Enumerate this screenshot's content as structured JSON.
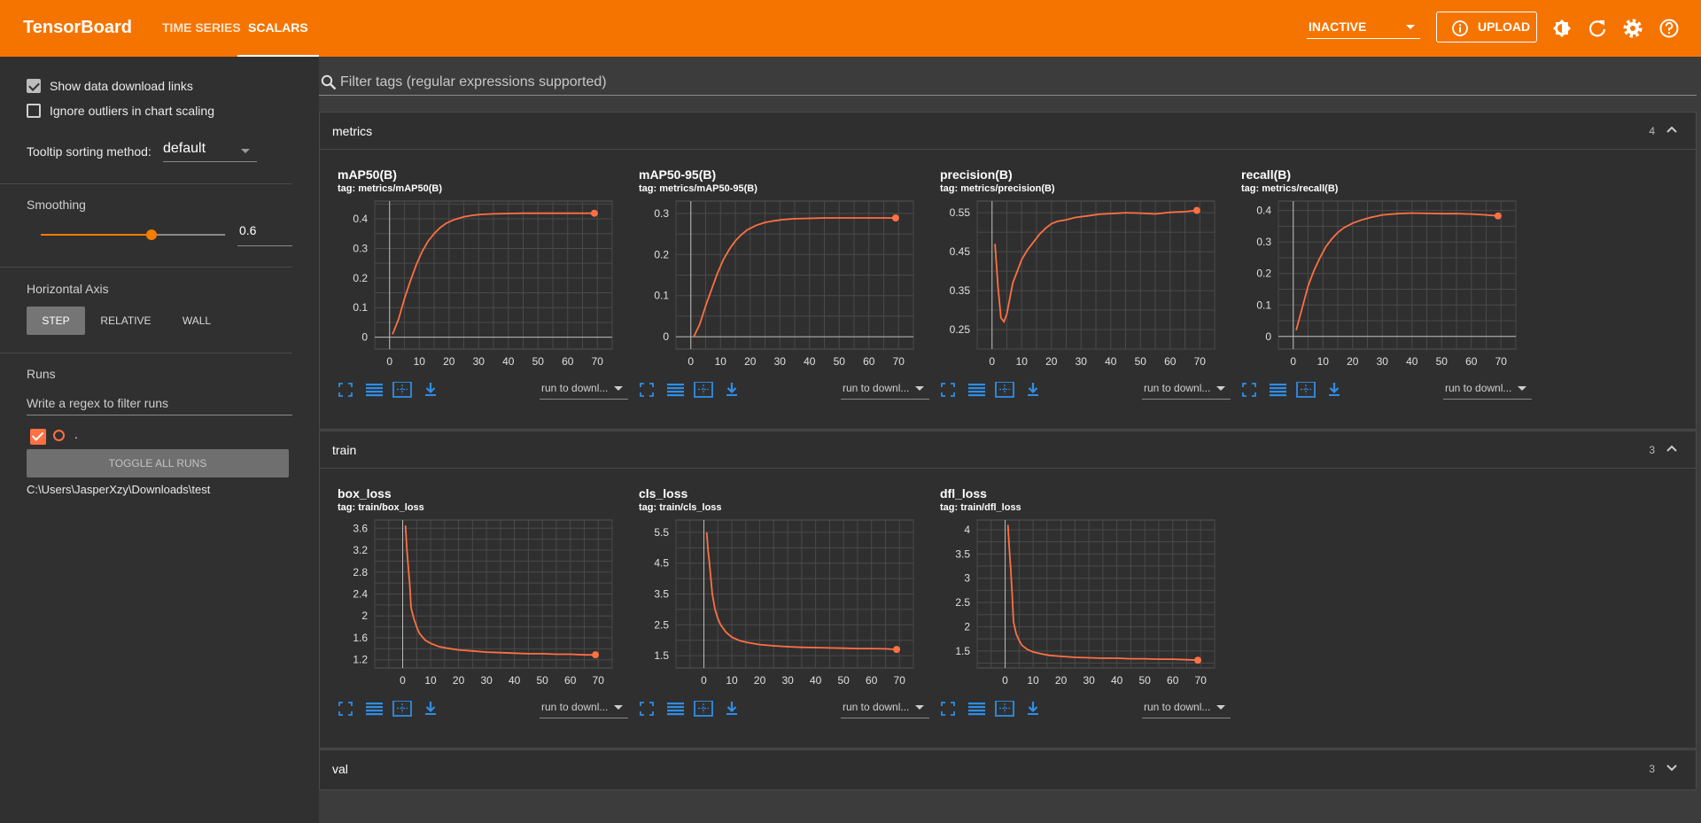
{
  "header": {
    "brand": "TensorBoard",
    "tabs": [
      {
        "label": "TIME SERIES",
        "active": false
      },
      {
        "label": "SCALARS",
        "active": true
      }
    ],
    "run_selector": "INACTIVE",
    "upload_label": "UPLOAD",
    "icons": [
      "theme-icon",
      "refresh-icon",
      "settings-icon",
      "help-icon"
    ],
    "color": "#f57400"
  },
  "sidebar": {
    "show_download_links": {
      "label": "Show data download links",
      "checked": true
    },
    "ignore_outliers": {
      "label": "Ignore outliers in chart scaling",
      "checked": false
    },
    "tooltip_sorting": {
      "label": "Tooltip sorting method:",
      "value": "default"
    },
    "smoothing": {
      "label": "Smoothing",
      "value": "0.6",
      "fraction": 0.6
    },
    "horizontal_axis": {
      "label": "Horizontal Axis",
      "options": [
        "STEP",
        "RELATIVE",
        "WALL"
      ],
      "selected": "STEP"
    },
    "runs": {
      "label": "Runs",
      "filter_placeholder": "Write a regex to filter runs",
      "run_name": ".",
      "toggle_all": "TOGGLE ALL RUNS",
      "path": "C:\\Users\\JasperXzy\\Downloads\\test"
    }
  },
  "main": {
    "filter_placeholder": "Filter tags (regular expressions supported)",
    "download_dropdown": "run to downl...",
    "series_color": "#ff7043",
    "groups": [
      {
        "name": "metrics",
        "count": "4",
        "expanded": true
      },
      {
        "name": "train",
        "count": "3",
        "expanded": true
      },
      {
        "name": "val",
        "count": "3",
        "expanded": false
      }
    ]
  },
  "chart_data": [
    {
      "type": "line",
      "title": "mAP50(B)",
      "tag": "tag: metrics/mAP50(B)",
      "xticks": [
        0,
        10,
        20,
        30,
        40,
        50,
        60,
        70
      ],
      "xlim": [
        -5,
        75
      ],
      "yticks": [
        0,
        0.1,
        0.2,
        0.3,
        0.4
      ],
      "ylim": [
        -0.04,
        0.46
      ],
      "x": [
        1,
        3,
        5,
        7,
        9,
        11,
        13,
        15,
        17,
        19,
        22,
        25,
        28,
        31,
        35,
        40,
        45,
        50,
        55,
        60,
        65,
        69
      ],
      "y": [
        0.01,
        0.06,
        0.13,
        0.19,
        0.245,
        0.29,
        0.325,
        0.35,
        0.37,
        0.385,
        0.398,
        0.407,
        0.412,
        0.415,
        0.417,
        0.418,
        0.419,
        0.419,
        0.419,
        0.419,
        0.419,
        0.419
      ]
    },
    {
      "type": "line",
      "title": "mAP50-95(B)",
      "tag": "tag: metrics/mAP50-95(B)",
      "xticks": [
        0,
        10,
        20,
        30,
        40,
        50,
        60,
        70
      ],
      "xlim": [
        -5,
        75
      ],
      "yticks": [
        0,
        0.1,
        0.2,
        0.3
      ],
      "ylim": [
        -0.03,
        0.33
      ],
      "x": [
        1,
        3,
        5,
        7,
        9,
        11,
        13,
        15,
        17,
        19,
        22,
        25,
        28,
        31,
        35,
        40,
        45,
        50,
        55,
        60,
        65,
        69
      ],
      "y": [
        0.0,
        0.03,
        0.075,
        0.115,
        0.155,
        0.188,
        0.213,
        0.233,
        0.248,
        0.26,
        0.271,
        0.278,
        0.282,
        0.285,
        0.287,
        0.288,
        0.289,
        0.289,
        0.289,
        0.289,
        0.289,
        0.289
      ]
    },
    {
      "type": "line",
      "title": "precision(B)",
      "tag": "tag: metrics/precision(B)",
      "xticks": [
        0,
        10,
        20,
        30,
        40,
        50,
        60,
        70
      ],
      "xlim": [
        -5,
        75
      ],
      "yticks": [
        0.25,
        0.35,
        0.45,
        0.55
      ],
      "ylim": [
        0.2,
        0.58
      ],
      "x": [
        1,
        2,
        3,
        4,
        5,
        6,
        7,
        8,
        10,
        12,
        14,
        16,
        18,
        20,
        22,
        25,
        28,
        30,
        33,
        36,
        40,
        45,
        50,
        55,
        60,
        65,
        69
      ],
      "y": [
        0.47,
        0.36,
        0.28,
        0.27,
        0.29,
        0.33,
        0.37,
        0.39,
        0.43,
        0.455,
        0.475,
        0.495,
        0.51,
        0.522,
        0.528,
        0.532,
        0.538,
        0.54,
        0.543,
        0.546,
        0.548,
        0.55,
        0.549,
        0.547,
        0.551,
        0.553,
        0.556
      ]
    },
    {
      "type": "line",
      "title": "recall(B)",
      "tag": "tag: metrics/recall(B)",
      "xticks": [
        0,
        10,
        20,
        30,
        40,
        50,
        60,
        70
      ],
      "xlim": [
        -5,
        75
      ],
      "yticks": [
        0,
        0.1,
        0.2,
        0.3,
        0.4
      ],
      "ylim": [
        -0.04,
        0.43
      ],
      "x": [
        1,
        3,
        5,
        7,
        9,
        11,
        13,
        15,
        17,
        20,
        23,
        26,
        30,
        35,
        40,
        45,
        50,
        55,
        60,
        65,
        69
      ],
      "y": [
        0.02,
        0.09,
        0.16,
        0.21,
        0.25,
        0.285,
        0.31,
        0.33,
        0.345,
        0.36,
        0.37,
        0.378,
        0.386,
        0.39,
        0.392,
        0.391,
        0.39,
        0.39,
        0.389,
        0.386,
        0.383
      ]
    },
    {
      "type": "line",
      "title": "box_loss",
      "tag": "tag: train/box_loss",
      "xticks": [
        0,
        10,
        20,
        30,
        40,
        50,
        60,
        70
      ],
      "xlim": [
        -10,
        75
      ],
      "yticks": [
        1.2,
        1.6,
        2,
        2.4,
        2.8,
        3.2,
        3.6
      ],
      "ylim": [
        1.05,
        3.75
      ],
      "x": [
        1,
        1.5,
        2,
        2.5,
        3,
        4,
        5,
        6,
        8,
        10,
        13,
        16,
        20,
        25,
        30,
        35,
        40,
        45,
        50,
        55,
        60,
        65,
        69
      ],
      "y": [
        3.65,
        3.2,
        2.9,
        2.6,
        2.15,
        1.95,
        1.8,
        1.68,
        1.56,
        1.5,
        1.44,
        1.41,
        1.38,
        1.36,
        1.34,
        1.33,
        1.32,
        1.31,
        1.31,
        1.3,
        1.3,
        1.29,
        1.29
      ]
    },
    {
      "type": "line",
      "title": "cls_loss",
      "tag": "tag: train/cls_loss",
      "xticks": [
        0,
        10,
        20,
        30,
        40,
        50,
        60,
        70
      ],
      "xlim": [
        -10,
        75
      ],
      "yticks": [
        1.5,
        2.5,
        3.5,
        4.5,
        5.5
      ],
      "ylim": [
        1.1,
        5.9
      ],
      "x": [
        1,
        1.5,
        2,
        2.5,
        3,
        4,
        5,
        6,
        8,
        10,
        13,
        16,
        20,
        25,
        30,
        35,
        40,
        45,
        50,
        55,
        60,
        65,
        69
      ],
      "y": [
        5.5,
        4.9,
        4.5,
        4.0,
        3.5,
        3.0,
        2.7,
        2.5,
        2.25,
        2.1,
        1.98,
        1.92,
        1.86,
        1.82,
        1.79,
        1.77,
        1.76,
        1.75,
        1.74,
        1.73,
        1.73,
        1.72,
        1.7
      ]
    },
    {
      "type": "line",
      "title": "dfl_loss",
      "tag": "tag: train/dfl_loss",
      "xticks": [
        0,
        10,
        20,
        30,
        40,
        50,
        60,
        70
      ],
      "xlim": [
        -10,
        75
      ],
      "yticks": [
        1.5,
        2,
        2.5,
        3,
        3.5,
        4
      ],
      "ylim": [
        1.15,
        4.2
      ],
      "x": [
        1,
        1.5,
        2,
        2.5,
        3,
        4,
        5,
        6,
        8,
        10,
        13,
        16,
        20,
        25,
        30,
        35,
        40,
        45,
        50,
        55,
        60,
        65,
        69
      ],
      "y": [
        4.1,
        3.6,
        3.2,
        2.7,
        2.1,
        1.85,
        1.72,
        1.62,
        1.53,
        1.48,
        1.44,
        1.41,
        1.39,
        1.37,
        1.36,
        1.35,
        1.35,
        1.34,
        1.34,
        1.33,
        1.33,
        1.32,
        1.31
      ]
    }
  ]
}
